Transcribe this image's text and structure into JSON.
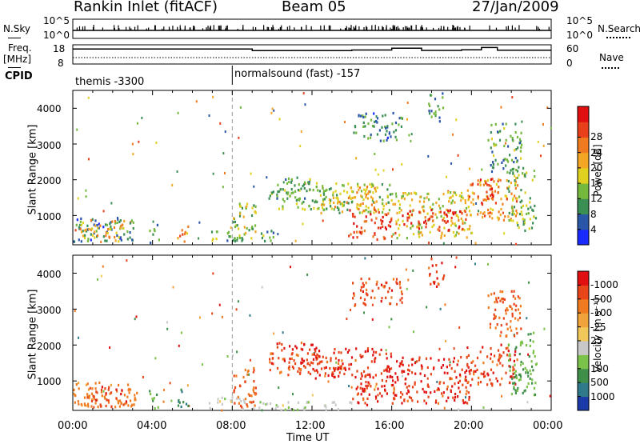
{
  "header": {
    "title": "Rankin Inlet (fitACF)",
    "beam": "Beam 05",
    "date": "27/Jan/2009"
  },
  "strips": {
    "nsky_label": "N.Sky",
    "nsky_ticks": [
      "10^5",
      "10^0"
    ],
    "nsearch_label": "N.Search",
    "nsearch_ticks": [
      "10^5",
      "10^0"
    ],
    "freq_label_top": "Freq.",
    "freq_label_bottom": "[MHz]",
    "freq_ticks": [
      "18",
      "8"
    ],
    "nave_label": "Nave",
    "nave_ticks": [
      "60",
      "0"
    ],
    "cpid_label": "CPID",
    "cpid_segments": [
      {
        "label": "themis -3300",
        "start_hour": 0
      },
      {
        "label": "normalsound (fast) -157",
        "start_hour": 8
      }
    ],
    "freq_trace": [
      [
        0,
        15.8
      ],
      [
        9,
        15.8
      ],
      [
        9,
        15.0
      ],
      [
        14,
        15.0
      ],
      [
        14,
        15.3
      ],
      [
        16,
        15.3
      ],
      [
        16,
        16.2
      ],
      [
        17.5,
        16.2
      ],
      [
        17.5,
        15.1
      ],
      [
        19.5,
        15.1
      ],
      [
        19.5,
        15.4
      ],
      [
        20.5,
        15.4
      ],
      [
        20.5,
        16.6
      ],
      [
        21.3,
        16.6
      ],
      [
        21.3,
        15.2
      ],
      [
        24,
        15.2
      ]
    ],
    "nave_level": 20,
    "nsky_baseline": 2.2
  },
  "time_axis": {
    "label": "Time UT",
    "ticks": [
      "00:00",
      "04:00",
      "08:00",
      "12:00",
      "16:00",
      "20:00",
      "00:00"
    ]
  },
  "chart_data": [
    {
      "type": "heatmap",
      "name": "power",
      "ylabel": "Slant Range [km]",
      "yticks": [
        "1000",
        "2000",
        "3000",
        "4000"
      ],
      "ylim": [
        180,
        4500
      ],
      "xlim": [
        0,
        24
      ],
      "colorbar_label": "Power [dB]",
      "colorbar_ticks": [
        "4",
        "8",
        "12",
        "16",
        "20",
        "24",
        "28"
      ],
      "colorbar_colors": [
        "#1a2bff",
        "#2a56a8",
        "#3b8f55",
        "#75b83e",
        "#e0d020",
        "#f2a623",
        "#ef7a1f",
        "#e8401a",
        "#e01010"
      ],
      "regions": [
        {
          "t": [
            0.0,
            3.2
          ],
          "r": [
            300,
            1000
          ],
          "v": 8
        },
        {
          "t": [
            0.3,
            2.6
          ],
          "r": [
            300,
            900
          ],
          "v": 20
        },
        {
          "t": [
            3.8,
            4.3
          ],
          "r": [
            250,
            800
          ],
          "v": 10
        },
        {
          "t": [
            5.2,
            5.8
          ],
          "r": [
            300,
            800
          ],
          "v": 22
        },
        {
          "t": [
            6.8,
            8.6
          ],
          "r": [
            250,
            600
          ],
          "v": 12
        },
        {
          "t": [
            8.0,
            9.2
          ],
          "r": [
            250,
            1400
          ],
          "v": 14
        },
        {
          "t": [
            9.3,
            10.2
          ],
          "r": [
            300,
            700
          ],
          "v": 10
        },
        {
          "t": [
            9.8,
            13.5
          ],
          "r": [
            1200,
            1800
          ],
          "v": 12
        },
        {
          "t": [
            10.2,
            12.2
          ],
          "r": [
            1500,
            2100
          ],
          "v": 10
        },
        {
          "t": [
            12.0,
            16.0
          ],
          "r": [
            1100,
            1950
          ],
          "v": 14
        },
        {
          "t": [
            13.0,
            15.4
          ],
          "r": [
            1200,
            1850
          ],
          "v": 20
        },
        {
          "t": [
            13.8,
            16.2
          ],
          "r": [
            350,
            1200
          ],
          "v": 27
        },
        {
          "t": [
            16.0,
            20.0
          ],
          "r": [
            400,
            1700
          ],
          "v": 16
        },
        {
          "t": [
            16.4,
            19.8
          ],
          "r": [
            600,
            1200
          ],
          "v": 28
        },
        {
          "t": [
            19.6,
            22.3
          ],
          "r": [
            900,
            2050
          ],
          "v": 22
        },
        {
          "t": [
            20.4,
            21.2
          ],
          "r": [
            1300,
            2100
          ],
          "v": 28
        },
        {
          "t": [
            21.8,
            23.2
          ],
          "r": [
            600,
            2400
          ],
          "v": 12
        },
        {
          "t": [
            17.8,
            18.6
          ],
          "r": [
            3600,
            4450
          ],
          "v": 8
        },
        {
          "t": [
            20.8,
            22.5
          ],
          "r": [
            2200,
            3600
          ],
          "v": 10
        },
        {
          "t": [
            14.0,
            16.5
          ],
          "r": [
            3100,
            3900
          ],
          "v": 8
        }
      ]
    },
    {
      "type": "heatmap",
      "name": "velocity",
      "ylabel": "Slant Range [km]",
      "yticks": [
        "1000",
        "2000",
        "3000",
        "4000"
      ],
      "ylim": [
        180,
        4500
      ],
      "xlim": [
        0,
        24
      ],
      "colorbar_label": "Velocity [m s⁻¹]",
      "colorbar_ticks": [
        "1000",
        "500",
        "100",
        "25",
        "-25",
        "-100",
        "-500",
        "-1000"
      ],
      "colorbar_colors": [
        "#1a3ba8",
        "#2f7a8a",
        "#3f8f4a",
        "#7ac24a",
        "#c8c8c8",
        "#f2c75a",
        "#f0a33a",
        "#ef7a1f",
        "#e8451a",
        "#e01010"
      ],
      "regions": [
        {
          "t": [
            0.0,
            3.2
          ],
          "r": [
            300,
            1000
          ],
          "v": -150
        },
        {
          "t": [
            0.5,
            2.8
          ],
          "r": [
            300,
            900
          ],
          "v": -400
        },
        {
          "t": [
            3.8,
            4.3
          ],
          "r": [
            250,
            800
          ],
          "v": 300
        },
        {
          "t": [
            5.2,
            5.9
          ],
          "r": [
            300,
            800
          ],
          "v": 400
        },
        {
          "t": [
            6.8,
            8.6
          ],
          "r": [
            250,
            600
          ],
          "v": 60
        },
        {
          "t": [
            8.0,
            9.2
          ],
          "r": [
            250,
            1400
          ],
          "v": -300
        },
        {
          "t": [
            9.0,
            14.0
          ],
          "r": [
            200,
            450
          ],
          "v": 80
        },
        {
          "t": [
            9.8,
            13.5
          ],
          "r": [
            1200,
            1800
          ],
          "v": -350
        },
        {
          "t": [
            10.2,
            12.2
          ],
          "r": [
            1500,
            2100
          ],
          "v": -500
        },
        {
          "t": [
            12.0,
            16.0
          ],
          "r": [
            1100,
            1950
          ],
          "v": -550
        },
        {
          "t": [
            13.8,
            16.2
          ],
          "r": [
            350,
            1200
          ],
          "v": -450
        },
        {
          "t": [
            16.0,
            20.0
          ],
          "r": [
            400,
            1700
          ],
          "v": -500
        },
        {
          "t": [
            19.6,
            22.3
          ],
          "r": [
            900,
            2050
          ],
          "v": -450
        },
        {
          "t": [
            21.8,
            23.2
          ],
          "r": [
            600,
            2400
          ],
          "v": 300
        },
        {
          "t": [
            17.8,
            18.6
          ],
          "r": [
            3600,
            4450
          ],
          "v": -450
        },
        {
          "t": [
            20.8,
            22.5
          ],
          "r": [
            2200,
            3600
          ],
          "v": -300
        },
        {
          "t": [
            14.0,
            16.5
          ],
          "r": [
            3100,
            3900
          ],
          "v": -400
        }
      ]
    }
  ]
}
